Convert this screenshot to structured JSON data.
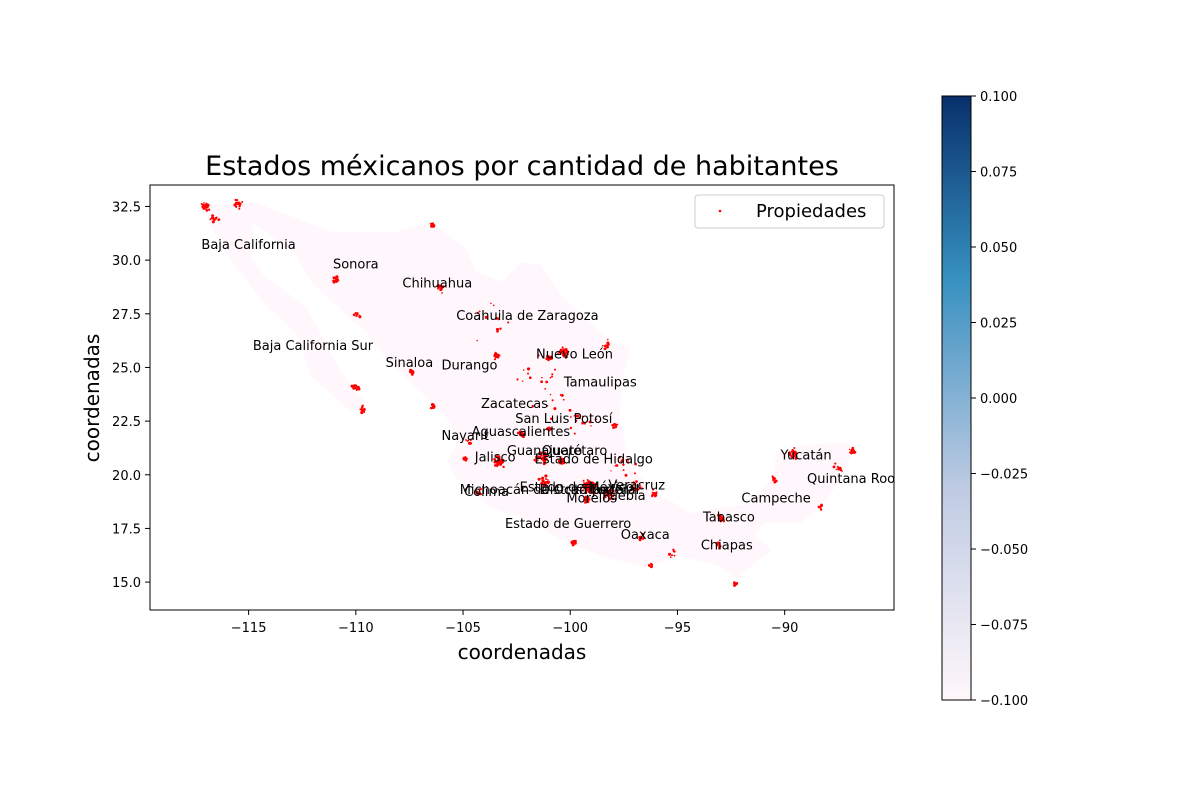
{
  "chart_data": {
    "type": "scatter",
    "title": "Estados méxicanos por cantidad de habitantes",
    "xlabel": "coordenadas",
    "ylabel": "coordenadas",
    "xlim": [
      -119.6,
      -84.9
    ],
    "ylim": [
      13.7,
      33.5
    ],
    "x_ticks": [
      -115,
      -110,
      -105,
      -100,
      -95,
      -90
    ],
    "x_tick_labels": [
      "−115",
      "−110",
      "−105",
      "−100",
      "−95",
      "−90"
    ],
    "y_ticks": [
      15.0,
      17.5,
      20.0,
      22.5,
      25.0,
      27.5,
      30.0,
      32.5
    ],
    "y_tick_labels": [
      "15.0",
      "17.5",
      "20.0",
      "22.5",
      "25.0",
      "27.5",
      "30.0",
      "32.5"
    ],
    "legend": {
      "label": "Propiedades",
      "position": "top-right"
    },
    "colorbar": {
      "ticks": [
        0.1,
        0.075,
        0.05,
        0.025,
        0.0,
        -0.025,
        -0.05,
        -0.075,
        -0.1
      ],
      "tick_labels": [
        "0.100",
        "0.075",
        "0.050",
        "0.025",
        "0.000",
        "−0.025",
        "−0.050",
        "−0.075",
        "−0.100"
      ],
      "color_top": "#08306b",
      "color_mid": "#3690c0",
      "color_low": "#bfcbe3",
      "color_bottom": "#fff7fb"
    },
    "colors": {
      "points": "#ff0000",
      "states_fill": "#fff7fb",
      "axes": "#000000"
    },
    "state_labels": [
      {
        "name": "Baja California",
        "lon": -115.0,
        "lat": 30.7
      },
      {
        "name": "Sonora",
        "lon": -110.0,
        "lat": 29.8
      },
      {
        "name": "Chihuahua",
        "lon": -106.2,
        "lat": 28.9
      },
      {
        "name": "Coahuila de Zaragoza",
        "lon": -102.0,
        "lat": 27.4
      },
      {
        "name": "Baja California Sur",
        "lon": -112.0,
        "lat": 26.0
      },
      {
        "name": "Nuevo León",
        "lon": -99.8,
        "lat": 25.6
      },
      {
        "name": "Sinaloa",
        "lon": -107.5,
        "lat": 25.2
      },
      {
        "name": "Durango",
        "lon": -104.7,
        "lat": 25.1
      },
      {
        "name": "Tamaulipas",
        "lon": -98.6,
        "lat": 24.3
      },
      {
        "name": "Zacatecas",
        "lon": -102.6,
        "lat": 23.3
      },
      {
        "name": "San Luis Potosí",
        "lon": -100.3,
        "lat": 22.6
      },
      {
        "name": "Aguascalientes",
        "lon": -102.3,
        "lat": 22.0
      },
      {
        "name": "Nayarit",
        "lon": -104.9,
        "lat": 21.8
      },
      {
        "name": "Guanajuato",
        "lon": -101.2,
        "lat": 21.1
      },
      {
        "name": "Querétaro",
        "lon": -99.8,
        "lat": 21.1
      },
      {
        "name": "Estado de Hidalgo",
        "lon": -98.9,
        "lat": 20.7
      },
      {
        "name": "Jalisco",
        "lon": -103.5,
        "lat": 20.8
      },
      {
        "name": "Yucatán",
        "lon": -89.0,
        "lat": 20.9
      },
      {
        "name": "Quintana Roo",
        "lon": -86.9,
        "lat": 19.8
      },
      {
        "name": "Veracruz",
        "lon": -96.9,
        "lat": 19.5
      },
      {
        "name": "Estado de México",
        "lon": -99.7,
        "lat": 19.4
      },
      {
        "name": "Michoacán de Ocampo",
        "lon": -101.7,
        "lat": 19.3
      },
      {
        "name": "Distrito Federal",
        "lon": -99.1,
        "lat": 19.3
      },
      {
        "name": "Tlaxcala",
        "lon": -98.2,
        "lat": 19.3
      },
      {
        "name": "Colima",
        "lon": -103.9,
        "lat": 19.2
      },
      {
        "name": "Puebla",
        "lon": -97.5,
        "lat": 19.0
      },
      {
        "name": "Morelos",
        "lon": -99.0,
        "lat": 18.9
      },
      {
        "name": "Campeche",
        "lon": -90.4,
        "lat": 18.9
      },
      {
        "name": "Tabasco",
        "lon": -92.6,
        "lat": 18.0
      },
      {
        "name": "Estado de Guerrero",
        "lon": -100.1,
        "lat": 17.7
      },
      {
        "name": "Oaxaca",
        "lon": -96.5,
        "lat": 17.2
      },
      {
        "name": "Chiapas",
        "lon": -92.7,
        "lat": 16.7
      }
    ],
    "state_outline": [
      [
        -117.1,
        32.55
      ],
      [
        -114.7,
        32.7
      ],
      [
        -111.1,
        31.3
      ],
      [
        -108.2,
        31.3
      ],
      [
        -106.5,
        31.75
      ],
      [
        -104.9,
        30.6
      ],
      [
        -104.4,
        29.5
      ],
      [
        -103.2,
        28.98
      ],
      [
        -102.3,
        29.9
      ],
      [
        -101.4,
        29.8
      ],
      [
        -100.3,
        28.2
      ],
      [
        -99.5,
        27.5
      ],
      [
        -98.0,
        26.1
      ],
      [
        -97.2,
        25.9
      ],
      [
        -97.6,
        24.5
      ],
      [
        -97.7,
        22.5
      ],
      [
        -97.2,
        20.6
      ],
      [
        -96.3,
        19.3
      ],
      [
        -95.0,
        18.6
      ],
      [
        -94.4,
        18.2
      ],
      [
        -92.8,
        18.5
      ],
      [
        -91.8,
        18.6
      ],
      [
        -90.5,
        19.9
      ],
      [
        -90.4,
        21.0
      ],
      [
        -89.0,
        21.4
      ],
      [
        -87.1,
        21.5
      ],
      [
        -86.8,
        21.1
      ],
      [
        -87.6,
        19.5
      ],
      [
        -88.3,
        18.5
      ],
      [
        -89.2,
        17.8
      ],
      [
        -90.9,
        17.8
      ],
      [
        -91.4,
        17.2
      ],
      [
        -90.6,
        16.5
      ],
      [
        -92.2,
        15.2
      ],
      [
        -93.2,
        15.8
      ],
      [
        -94.8,
        16.2
      ],
      [
        -96.5,
        15.7
      ],
      [
        -98.5,
        16.2
      ],
      [
        -100.5,
        17.0
      ],
      [
        -102.0,
        17.9
      ],
      [
        -103.7,
        18.5
      ],
      [
        -105.3,
        19.8
      ],
      [
        -105.7,
        20.6
      ],
      [
        -105.2,
        21.7
      ],
      [
        -105.8,
        22.7
      ],
      [
        -106.9,
        23.8
      ],
      [
        -108.5,
        25.3
      ],
      [
        -109.4,
        26.5
      ],
      [
        -110.9,
        27.9
      ],
      [
        -112.1,
        29.0
      ],
      [
        -112.8,
        30.3
      ],
      [
        -114.8,
        31.7
      ],
      [
        -114.9,
        30.2
      ],
      [
        -114.3,
        29.3
      ],
      [
        -112.3,
        27.8
      ],
      [
        -111.5,
        26.3
      ],
      [
        -110.7,
        24.8
      ],
      [
        -109.5,
        23.3
      ],
      [
        -110.2,
        22.9
      ],
      [
        -112.1,
        24.6
      ],
      [
        -112.7,
        26.5
      ],
      [
        -114.2,
        27.9
      ],
      [
        -115.6,
        29.7
      ],
      [
        -116.8,
        31.6
      ],
      [
        -117.1,
        32.55
      ]
    ],
    "point_clusters": [
      {
        "lon": -117.0,
        "lat": 32.5,
        "n": 26,
        "spread": 0.25
      },
      {
        "lon": -115.5,
        "lat": 32.6,
        "n": 16,
        "spread": 0.3
      },
      {
        "lon": -116.6,
        "lat": 31.9,
        "n": 8,
        "spread": 0.3
      },
      {
        "lon": -110.9,
        "lat": 29.1,
        "n": 18,
        "spread": 0.2
      },
      {
        "lon": -106.4,
        "lat": 31.6,
        "n": 14,
        "spread": 0.15
      },
      {
        "lon": -106.1,
        "lat": 28.65,
        "n": 18,
        "spread": 0.25
      },
      {
        "lon": -109.9,
        "lat": 27.5,
        "n": 8,
        "spread": 0.25
      },
      {
        "lon": -110.0,
        "lat": 24.1,
        "n": 16,
        "spread": 0.2
      },
      {
        "lon": -109.7,
        "lat": 23.05,
        "n": 12,
        "spread": 0.2
      },
      {
        "lon": -107.4,
        "lat": 24.8,
        "n": 14,
        "spread": 0.2
      },
      {
        "lon": -106.4,
        "lat": 23.2,
        "n": 12,
        "spread": 0.15
      },
      {
        "lon": -103.4,
        "lat": 25.55,
        "n": 18,
        "spread": 0.2
      },
      {
        "lon": -101.0,
        "lat": 25.45,
        "n": 18,
        "spread": 0.2
      },
      {
        "lon": -100.3,
        "lat": 25.7,
        "n": 34,
        "spread": 0.3
      },
      {
        "lon": -98.3,
        "lat": 26.05,
        "n": 10,
        "spread": 0.3
      },
      {
        "lon": -97.9,
        "lat": 22.3,
        "n": 14,
        "spread": 0.2
      },
      {
        "lon": -102.3,
        "lat": 21.9,
        "n": 14,
        "spread": 0.2
      },
      {
        "lon": -100.98,
        "lat": 22.15,
        "n": 10,
        "spread": 0.2
      },
      {
        "lon": -103.35,
        "lat": 20.65,
        "n": 44,
        "spread": 0.35
      },
      {
        "lon": -101.4,
        "lat": 20.8,
        "n": 36,
        "spread": 0.45
      },
      {
        "lon": -100.4,
        "lat": 20.6,
        "n": 18,
        "spread": 0.3
      },
      {
        "lon": -99.15,
        "lat": 19.45,
        "n": 90,
        "spread": 0.45
      },
      {
        "lon": -98.2,
        "lat": 19.1,
        "n": 30,
        "spread": 0.35
      },
      {
        "lon": -96.9,
        "lat": 19.4,
        "n": 16,
        "spread": 0.35
      },
      {
        "lon": -96.1,
        "lat": 19.1,
        "n": 14,
        "spread": 0.25
      },
      {
        "lon": -99.2,
        "lat": 18.85,
        "n": 22,
        "spread": 0.25
      },
      {
        "lon": -101.2,
        "lat": 19.7,
        "n": 18,
        "spread": 0.3
      },
      {
        "lon": -104.3,
        "lat": 19.2,
        "n": 10,
        "spread": 0.2
      },
      {
        "lon": -99.85,
        "lat": 16.85,
        "n": 16,
        "spread": 0.15
      },
      {
        "lon": -96.7,
        "lat": 17.05,
        "n": 10,
        "spread": 0.2
      },
      {
        "lon": -95.2,
        "lat": 16.3,
        "n": 8,
        "spread": 0.3
      },
      {
        "lon": -96.2,
        "lat": 15.8,
        "n": 6,
        "spread": 0.2
      },
      {
        "lon": -92.95,
        "lat": 18.0,
        "n": 20,
        "spread": 0.2
      },
      {
        "lon": -93.1,
        "lat": 16.75,
        "n": 12,
        "spread": 0.2
      },
      {
        "lon": -92.3,
        "lat": 14.9,
        "n": 6,
        "spread": 0.15
      },
      {
        "lon": -90.5,
        "lat": 19.8,
        "n": 10,
        "spread": 0.2
      },
      {
        "lon": -89.6,
        "lat": 21.0,
        "n": 26,
        "spread": 0.3
      },
      {
        "lon": -86.85,
        "lat": 21.1,
        "n": 22,
        "spread": 0.2
      },
      {
        "lon": -87.5,
        "lat": 20.3,
        "n": 10,
        "spread": 0.3
      },
      {
        "lon": -88.3,
        "lat": 18.5,
        "n": 6,
        "spread": 0.2
      },
      {
        "lon": -104.7,
        "lat": 21.5,
        "n": 8,
        "spread": 0.2
      },
      {
        "lon": -104.9,
        "lat": 20.75,
        "n": 10,
        "spread": 0.15
      },
      {
        "lon": -101.0,
        "lat": 23.5,
        "n": 10,
        "spread": 1.0
      },
      {
        "lon": -103.5,
        "lat": 27.0,
        "n": 12,
        "spread": 1.5
      },
      {
        "lon": -99.5,
        "lat": 22.5,
        "n": 16,
        "spread": 1.2
      },
      {
        "lon": -101.5,
        "lat": 25.0,
        "n": 14,
        "spread": 1.5
      },
      {
        "lon": -97.5,
        "lat": 20.5,
        "n": 14,
        "spread": 0.9
      }
    ]
  }
}
